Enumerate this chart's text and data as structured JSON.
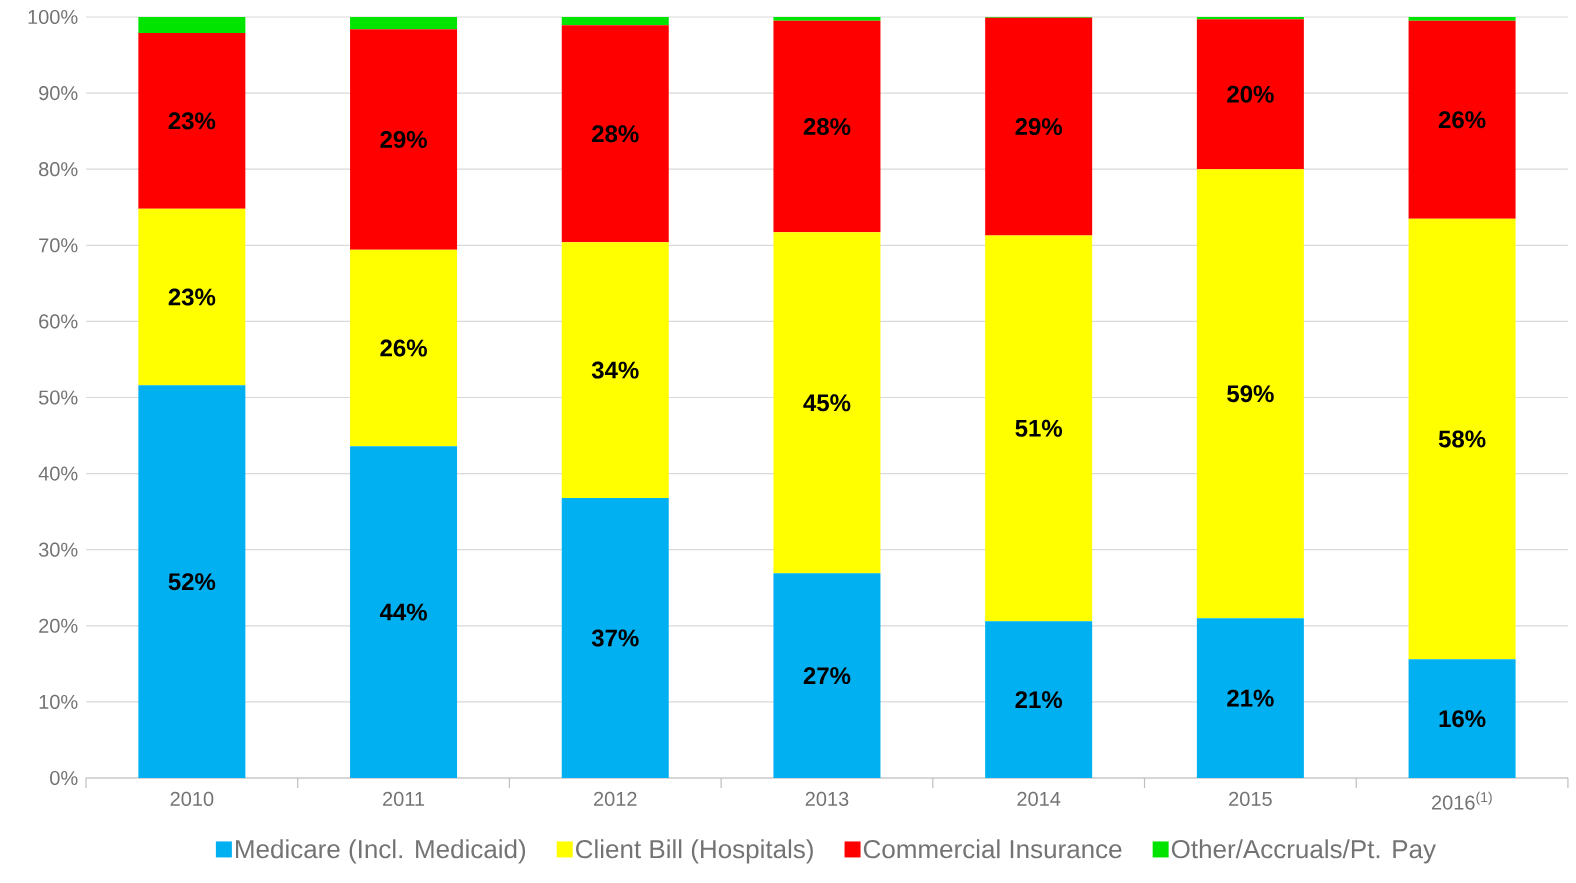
{
  "chart_data": {
    "type": "bar",
    "stacked": true,
    "categories": [
      "2010",
      "2011",
      "2012",
      "2013",
      "2014",
      "2015",
      "2016$^{(1)}$"
    ],
    "series": [
      {
        "name": "Medicare (Incl. Medicaid)",
        "color": "#00b0f0",
        "values": [
          51.6,
          43.6,
          36.8,
          26.9,
          20.6,
          21.0,
          15.6
        ],
        "value_labels": [
          "52%",
          "44%",
          "37%",
          "27%",
          "21%",
          "21%",
          "16%"
        ]
      },
      {
        "name": "Client Bill (Hospitals)",
        "color": "#ffff00",
        "values": [
          23.2,
          25.8,
          33.6,
          44.8,
          50.7,
          59.0,
          57.9
        ],
        "value_labels": [
          "23%",
          "26%",
          "34%",
          "45%",
          "51%",
          "59%",
          "58%"
        ]
      },
      {
        "name": "Commercial Insurance",
        "color": "#ff0000",
        "values": [
          23.1,
          29.0,
          28.5,
          27.8,
          28.6,
          19.7,
          26.0
        ],
        "value_labels": [
          "23%",
          "29%",
          "28%",
          "28%",
          "29%",
          "20%",
          "26%"
        ]
      },
      {
        "name": "Other/Accruals/Pt. Pay",
        "color": "#00e400",
        "values": [
          2.1,
          1.6,
          1.1,
          0.5,
          0.1,
          0.3,
          0.5
        ]
      }
    ],
    "ylim": [
      0,
      100
    ],
    "yticks": [
      {
        "value": 0,
        "label": "0%"
      },
      {
        "value": 10,
        "label": "10%"
      },
      {
        "value": 20,
        "label": "20%"
      },
      {
        "value": 30,
        "label": "30%"
      },
      {
        "value": 40,
        "label": "40%"
      },
      {
        "value": 50,
        "label": "50%"
      },
      {
        "value": 60,
        "label": "60%"
      },
      {
        "value": 70,
        "label": "70%"
      },
      {
        "value": 80,
        "label": "80%"
      },
      {
        "value": 90,
        "label": "90%"
      },
      {
        "value": 100,
        "label": "100%"
      }
    ],
    "grid": "y",
    "legend": "bottom"
  }
}
